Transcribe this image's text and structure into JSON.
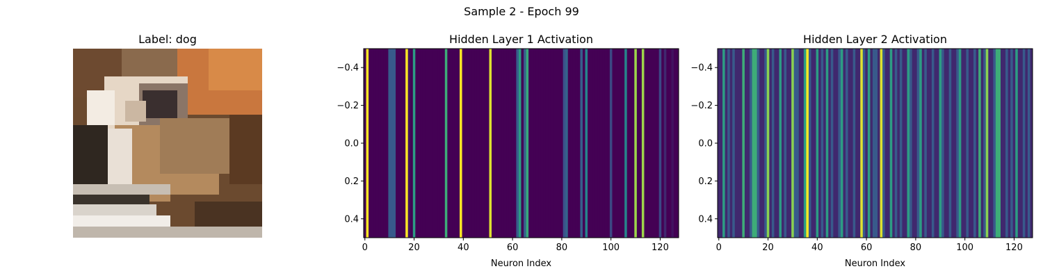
{
  "figure": {
    "suptitle": "Sample 2 - Epoch 99"
  },
  "image_panel": {
    "title": "Label: dog",
    "image_description_hidden": ""
  },
  "chart_data": [
    {
      "type": "heatmap",
      "title": "Hidden Layer 1 Activation",
      "xlabel": "Neuron Index",
      "ylabel": "",
      "colormap": "viridis",
      "xlim": [
        -0.5,
        127.5
      ],
      "ylim": [
        0.5,
        -0.5
      ],
      "x_ticks": [
        0,
        20,
        40,
        60,
        80,
        100,
        120
      ],
      "y_ticks": [
        -0.4,
        -0.2,
        0.0,
        0.2,
        0.4
      ],
      "y_tick_labels": [
        "−0.4",
        "−0.2",
        "0.0",
        "0.2",
        "0.4"
      ],
      "grid": false,
      "values": [
        0.0,
        1.0,
        0.0,
        0.0,
        0.0,
        0.0,
        0.0,
        0.0,
        0.0,
        0.0,
        0.28,
        0.28,
        0.28,
        0.0,
        0.0,
        0.0,
        0.0,
        1.0,
        0.05,
        0.0,
        0.55,
        0.0,
        0.0,
        0.0,
        0.0,
        0.0,
        0.0,
        0.0,
        0.0,
        0.0,
        0.0,
        0.0,
        0.0,
        0.62,
        0.0,
        0.0,
        0.0,
        0.0,
        0.0,
        1.0,
        0.0,
        0.0,
        0.0,
        0.0,
        0.0,
        0.0,
        0.0,
        0.0,
        0.0,
        0.0,
        0.0,
        0.95,
        0.0,
        0.0,
        0.0,
        0.0,
        0.0,
        0.0,
        0.0,
        0.0,
        0.0,
        0.0,
        0.3,
        0.55,
        0.0,
        0.3,
        0.6,
        0.0,
        0.0,
        0.0,
        0.0,
        0.0,
        0.0,
        0.0,
        0.0,
        0.0,
        0.0,
        0.0,
        0.0,
        0.0,
        0.0,
        0.25,
        0.32,
        0.0,
        0.0,
        0.0,
        0.0,
        0.0,
        0.3,
        0.0,
        0.45,
        0.0,
        0.0,
        0.0,
        0.0,
        0.0,
        0.0,
        0.0,
        0.0,
        0.0,
        0.22,
        0.0,
        0.0,
        0.0,
        0.0,
        0.0,
        0.45,
        0.0,
        0.0,
        0.0,
        0.85,
        0.0,
        0.0,
        0.85,
        0.0,
        0.0,
        0.0,
        0.0,
        0.0,
        0.0,
        0.22,
        0.0,
        0.12,
        0.0,
        0.0,
        0.05,
        0.0,
        0.0
      ]
    },
    {
      "type": "heatmap",
      "title": "Hidden Layer 2 Activation",
      "xlabel": "Neuron Index",
      "ylabel": "",
      "colormap": "viridis",
      "xlim": [
        -0.5,
        127.5
      ],
      "ylim": [
        0.5,
        -0.5
      ],
      "x_ticks": [
        0,
        20,
        40,
        60,
        80,
        100,
        120
      ],
      "y_ticks": [
        -0.4,
        -0.2,
        0.0,
        0.2,
        0.4
      ],
      "y_tick_labels": [
        "−0.4",
        "−0.2",
        "0.0",
        "0.2",
        "0.4"
      ],
      "grid": false,
      "values": [
        0.12,
        0.12,
        0.55,
        0.12,
        0.28,
        0.12,
        0.28,
        0.12,
        0.12,
        0.12,
        0.62,
        0.12,
        0.12,
        0.28,
        0.62,
        0.62,
        0.28,
        0.12,
        0.12,
        0.28,
        0.82,
        0.12,
        0.28,
        0.12,
        0.12,
        0.55,
        0.12,
        0.28,
        0.12,
        0.12,
        0.82,
        0.28,
        0.28,
        0.12,
        0.12,
        0.55,
        1.0,
        0.28,
        0.12,
        0.12,
        0.55,
        0.12,
        0.28,
        0.12,
        0.55,
        0.12,
        0.28,
        0.12,
        0.12,
        0.28,
        0.55,
        0.12,
        0.28,
        0.12,
        0.12,
        0.28,
        0.12,
        0.12,
        0.95,
        0.28,
        0.12,
        0.55,
        0.12,
        0.28,
        0.28,
        0.12,
        0.95,
        0.28,
        0.12,
        0.12,
        0.55,
        0.12,
        0.28,
        0.12,
        0.28,
        0.12,
        0.12,
        0.55,
        0.28,
        0.12,
        0.12,
        0.28,
        0.55,
        0.12,
        0.28,
        0.12,
        0.12,
        0.28,
        0.12,
        0.12,
        0.55,
        0.28,
        0.12,
        0.12,
        0.28,
        0.12,
        0.12,
        0.28,
        0.55,
        0.12,
        0.12,
        0.28,
        0.12,
        0.12,
        0.28,
        0.12,
        0.62,
        0.12,
        0.28,
        0.82,
        0.12,
        0.12,
        0.28,
        0.62,
        0.62,
        0.12,
        0.12,
        0.28,
        0.12,
        0.28,
        0.12,
        0.55,
        0.12,
        0.12,
        0.28,
        0.12,
        0.28,
        0.12
      ]
    }
  ]
}
